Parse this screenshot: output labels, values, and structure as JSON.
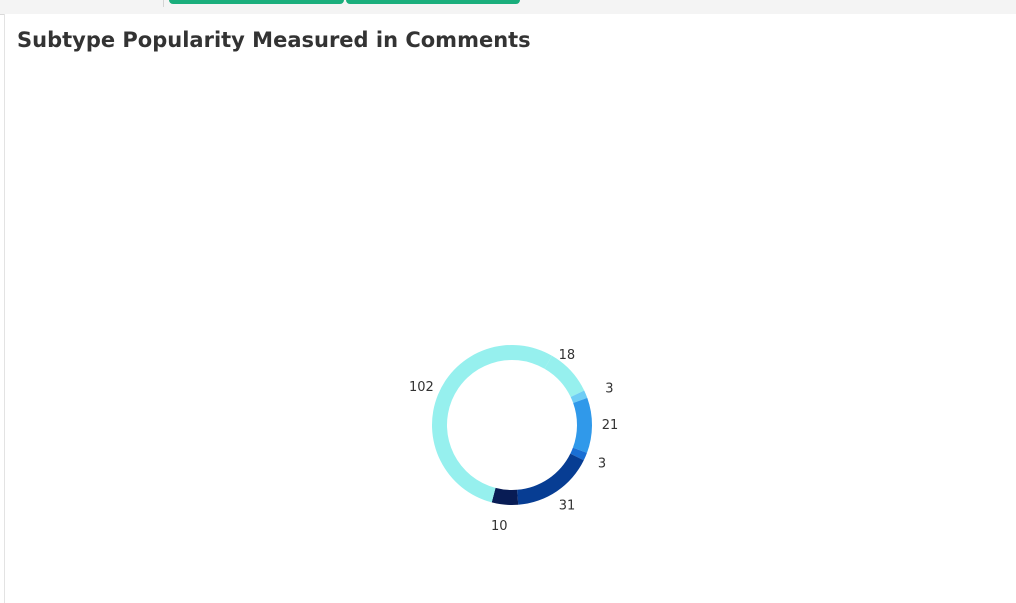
{
  "colors": {
    "tab_accent": "#1aae7c",
    "title_text": "#333333"
  },
  "chart_data": {
    "type": "pie",
    "variant": "donut",
    "title": "Subtype Popularity Measured in Comments",
    "legend": "none",
    "slices": [
      {
        "value": 18,
        "label": "18",
        "color": "#96f0ee"
      },
      {
        "value": 3,
        "label": "3",
        "color": "#6fcdf5"
      },
      {
        "value": 21,
        "label": "21",
        "color": "#3099ea"
      },
      {
        "value": 3,
        "label": "3",
        "color": "#1a6fd4"
      },
      {
        "value": 31,
        "label": "31",
        "color": "#073d93"
      },
      {
        "value": 10,
        "label": "10",
        "color": "#081c55"
      },
      {
        "value": 102,
        "label": "102",
        "color": "#96f0ee"
      }
    ]
  }
}
